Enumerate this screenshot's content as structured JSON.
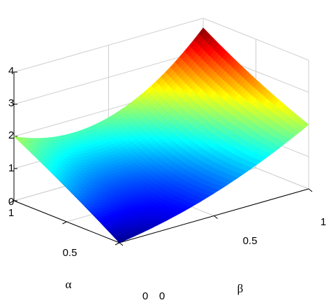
{
  "chart_data": {
    "type": "surface",
    "title": "",
    "xlabel": "β",
    "ylabel": "α",
    "zlabel": "",
    "xlim": [
      0,
      1
    ],
    "ylim": [
      0,
      1
    ],
    "zlim": [
      0,
      4
    ],
    "x_ticks": [
      "0",
      "0.5",
      "1"
    ],
    "y_ticks": [
      "0",
      "0.5",
      "1"
    ],
    "z_ticks": [
      "0",
      "1",
      "2",
      "3",
      "4"
    ],
    "grid": true,
    "colormap": "jet",
    "colormap_stops": [
      "#00008f",
      "#0000ff",
      "#00ffff",
      "#ffff00",
      "#ff0000",
      "#800000"
    ],
    "z_values": {
      "beta_0_alpha_0": 0.0,
      "beta_0_alpha_0.5": 1.05,
      "beta_0_alpha_1": 2.0,
      "beta_0.5_alpha_0": 0.7,
      "beta_0.5_alpha_0.5": 0.9,
      "beta_0.5_alpha_1": 1.75,
      "beta_1_alpha_0": 2.0,
      "beta_1_alpha_0.5": 2.75,
      "beta_1_alpha_1": 3.7
    }
  }
}
